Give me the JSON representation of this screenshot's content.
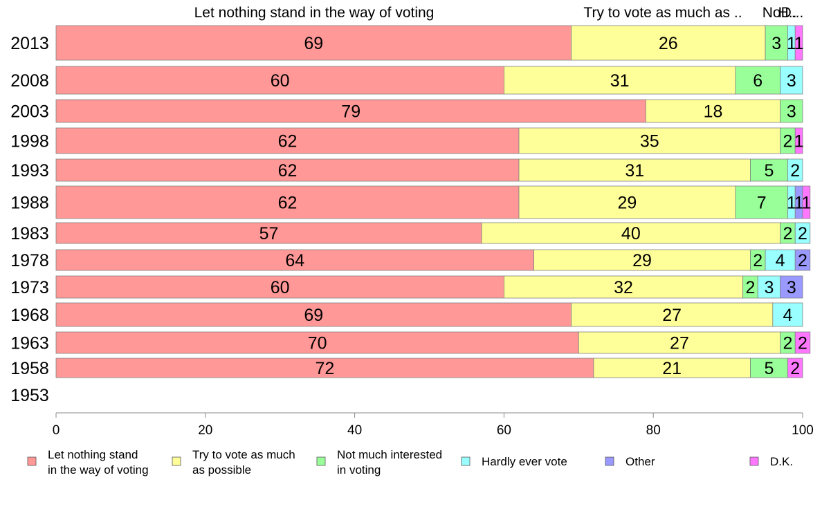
{
  "chart_data": {
    "type": "bar",
    "orientation": "horizontal",
    "stacked": true,
    "categories": [
      "2013",
      "2008",
      "2003",
      "1998",
      "1993",
      "1988",
      "1983",
      "1978",
      "1973",
      "1968",
      "1963",
      "1958",
      "1953"
    ],
    "series": [
      {
        "name": "Let nothing stand in the way of voting",
        "legend_lines": [
          "Let nothing stand",
          "in the way of voting"
        ],
        "color": "#ff9896",
        "values": [
          69,
          60,
          79,
          62,
          62,
          62,
          57,
          64,
          60,
          69,
          70,
          72,
          null
        ]
      },
      {
        "name": "Try to vote as much as possible",
        "legend_lines": [
          "Try to vote as much",
          "as possible"
        ],
        "color": "#ffff99",
        "values": [
          26,
          31,
          18,
          35,
          31,
          29,
          40,
          29,
          32,
          27,
          27,
          21,
          null
        ]
      },
      {
        "name": "Not much interested in voting",
        "legend_lines": [
          "Not much interested",
          "in voting"
        ],
        "color": "#99ff99",
        "values": [
          3,
          6,
          3,
          2,
          5,
          7,
          2,
          2,
          2,
          0,
          2,
          5,
          null
        ]
      },
      {
        "name": "Hardly ever vote",
        "legend_lines": [
          "Hardly ever vote"
        ],
        "color": "#99ffff",
        "values": [
          1,
          3,
          0,
          0,
          2,
          1,
          2,
          4,
          3,
          4,
          0,
          0,
          null
        ]
      },
      {
        "name": "Other",
        "legend_lines": [
          "Other"
        ],
        "color": "#9999ff",
        "values": [
          0,
          0,
          0,
          0,
          0,
          1,
          0,
          2,
          3,
          0,
          0,
          0,
          null
        ]
      },
      {
        "name": "D.K.",
        "legend_lines": [
          "D.K."
        ],
        "color": "#ff77ff",
        "values": [
          1,
          0,
          0,
          1,
          0,
          1,
          0,
          0,
          0,
          0,
          2,
          2,
          null
        ]
      }
    ],
    "top_labels": [
      "Let nothing stand in the way of voting",
      "Try to vote as much as ..",
      "No..",
      "H..",
      "D..."
    ],
    "xlim": [
      0,
      100
    ],
    "xticks": [
      0,
      20,
      40,
      60,
      80,
      100
    ],
    "grid": false,
    "legend_position": "bottom"
  }
}
